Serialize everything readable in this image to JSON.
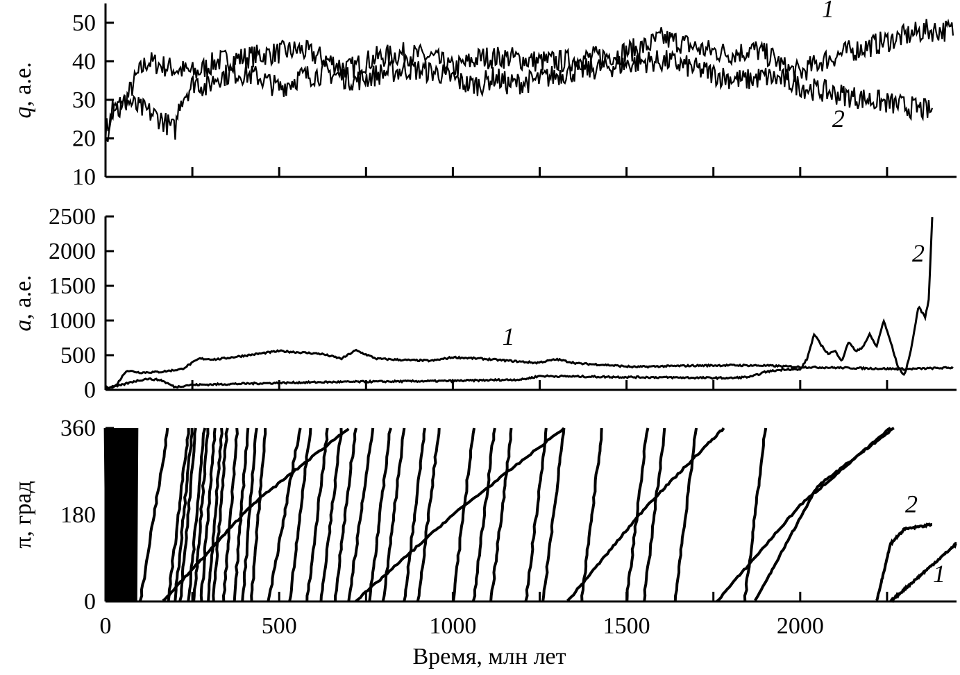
{
  "chart_data": [
    {
      "type": "line",
      "panel": "q",
      "ylabel_var": "q",
      "ylabel_unit": ", а.е.",
      "ylim": [
        10,
        55
      ],
      "yticks": [
        10,
        20,
        30,
        40,
        50
      ],
      "xlim": [
        0,
        2450
      ],
      "xticks": [
        0,
        250,
        500,
        750,
        1000,
        1250,
        1500,
        1750,
        2000,
        2250
      ],
      "xtick_labels_shown": false,
      "series": [
        {
          "name": "1",
          "x": [
            0,
            30,
            60,
            90,
            120,
            160,
            200,
            260,
            320,
            400,
            480,
            560,
            620,
            700,
            780,
            860,
            940,
            1000,
            1080,
            1160,
            1240,
            1320,
            1400,
            1480,
            1560,
            1600,
            1650,
            1720,
            1800,
            1870,
            1920,
            1960,
            2000,
            2060,
            2120,
            2200,
            2280,
            2360,
            2440
          ],
          "y": [
            22,
            28,
            30,
            36,
            40,
            39,
            38,
            37,
            40,
            41,
            42,
            43,
            41,
            38,
            41,
            42,
            41,
            38,
            41,
            41,
            40,
            40,
            41,
            42,
            44,
            46,
            45,
            43,
            42,
            43,
            41,
            38,
            37,
            40,
            42,
            44,
            46,
            48,
            48
          ],
          "band": 3
        },
        {
          "name": "2",
          "x": [
            0,
            20,
            40,
            60,
            90,
            120,
            160,
            200,
            215,
            260,
            290,
            320,
            380,
            440,
            500,
            560,
            640,
            720,
            800,
            880,
            960,
            1040,
            1080,
            1120,
            1160,
            1240,
            1320,
            1400,
            1480,
            1560,
            1620,
            1700,
            1780,
            1840,
            1900,
            1960,
            2020,
            2080,
            2140,
            2200,
            2260,
            2320,
            2380
          ],
          "y": [
            18,
            30,
            27,
            30,
            28,
            27,
            25,
            22,
            30,
            35,
            33,
            36,
            37,
            36,
            33,
            36,
            37,
            35,
            37,
            38,
            37,
            34,
            34,
            36,
            34,
            35,
            37,
            38,
            39,
            40,
            40,
            38,
            36,
            35,
            36,
            35,
            33,
            32,
            31,
            30,
            29,
            28,
            27
          ],
          "band": 3
        }
      ],
      "annotations": [
        {
          "text": "1",
          "x": 2080,
          "y": 51.5
        },
        {
          "text": "2",
          "x": 2110,
          "y": 23
        }
      ]
    },
    {
      "type": "line",
      "panel": "a",
      "ylabel_var": "a",
      "ylabel_unit": ", а.е.",
      "ylim": [
        0,
        2500
      ],
      "yticks": [
        0,
        500,
        1000,
        1500,
        2000,
        2500
      ],
      "xlim": [
        0,
        2450
      ],
      "xticks": [
        0,
        250,
        500,
        750,
        1000,
        1250,
        1500,
        1750,
        2000,
        2250
      ],
      "xtick_labels_shown": false,
      "series": [
        {
          "name": "1",
          "x": [
            0,
            30,
            60,
            100,
            160,
            220,
            270,
            320,
            380,
            440,
            500,
            560,
            620,
            680,
            720,
            780,
            860,
            940,
            1000,
            1080,
            1160,
            1240,
            1300,
            1360,
            1440,
            1520,
            1600,
            1700,
            1800,
            1900,
            2000,
            2100,
            2200,
            2300,
            2440
          ],
          "y": [
            30,
            60,
            280,
            250,
            260,
            300,
            450,
            440,
            480,
            520,
            560,
            540,
            520,
            450,
            570,
            450,
            430,
            420,
            470,
            450,
            420,
            390,
            440,
            380,
            360,
            330,
            340,
            350,
            355,
            350,
            330,
            320,
            310,
            300,
            320
          ]
        },
        {
          "name": "2",
          "x": [
            0,
            40,
            80,
            120,
            160,
            200,
            240,
            400,
            600,
            800,
            1000,
            1200,
            1250,
            1400,
            1600,
            1800,
            1860,
            1900,
            1960,
            2000,
            2020,
            2040,
            2060,
            2080,
            2100,
            2120,
            2140,
            2160,
            2180,
            2200,
            2220,
            2240,
            2260,
            2280,
            2300,
            2320,
            2340,
            2360,
            2370,
            2380
          ],
          "y": [
            20,
            60,
            120,
            160,
            140,
            40,
            70,
            90,
            110,
            120,
            130,
            150,
            200,
            190,
            180,
            170,
            190,
            260,
            300,
            290,
            450,
            800,
            650,
            520,
            560,
            420,
            700,
            550,
            620,
            800,
            620,
            1000,
            700,
            350,
            200,
            600,
            1200,
            1050,
            1300,
            2500
          ]
        }
      ],
      "annotations": [
        {
          "text": "1",
          "x": 1160,
          "y": 650
        },
        {
          "text": "2",
          "x": 2340,
          "y": 1850
        }
      ]
    },
    {
      "type": "line",
      "panel": "pi",
      "ylabel": "π, град",
      "ylim": [
        0,
        360
      ],
      "yticks": [
        0,
        180,
        360
      ],
      "xlim": [
        0,
        2450
      ],
      "xticks": [
        0,
        250,
        500,
        750,
        1000,
        1250,
        1500,
        1750,
        2000,
        2250
      ],
      "xtick_labels": [
        "0",
        "",
        "500",
        "",
        "1000",
        "",
        "1500",
        "",
        "2000",
        ""
      ],
      "xlabel": "Время, млн лет",
      "noise_region": [
        0,
        90
      ],
      "series": [
        {
          "name": "1",
          "segments": [
            {
              "x": [
                165,
                420,
                700
              ],
              "y": [
                0,
                200,
                360
              ]
            },
            {
              "x": [
                720,
                1000,
                1320
              ],
              "y": [
                0,
                180,
                360
              ]
            },
            {
              "x": [
                1330,
                1560,
                1780
              ],
              "y": [
                0,
                200,
                360
              ]
            },
            {
              "x": [
                1760,
                2000,
                2260
              ],
              "y": [
                0,
                200,
                360
              ]
            },
            {
              "x": [
                2260,
                2450
              ],
              "y": [
                0,
                120
              ]
            }
          ]
        },
        {
          "name": "2",
          "segments": [
            {
              "x": [
                1870,
                2050,
                2270
              ],
              "y": [
                0,
                240,
                360
              ]
            },
            {
              "x": [
                2220,
                2260,
                2300,
                2380
              ],
              "y": [
                0,
                120,
                150,
                160
              ]
            }
          ],
          "steep_lines_x0": [
            100,
            180,
            200,
            215,
            240,
            255,
            275,
            295,
            310,
            340,
            370,
            395,
            420,
            470,
            530,
            580,
            620,
            660,
            700,
            760,
            800,
            860,
            900,
            1000,
            1060,
            1110,
            1210,
            1260,
            1370,
            1500,
            1550,
            1640,
            1840
          ],
          "steep_lines_dx": [
            80,
            60,
            50,
            45,
            45,
            40,
            40,
            40,
            40,
            40,
            40,
            40,
            40,
            90,
            60,
            60,
            60,
            60,
            70,
            60,
            60,
            60,
            60,
            60,
            60,
            60,
            60,
            60,
            60,
            60,
            60,
            60,
            60
          ]
        }
      ],
      "annotations": [
        {
          "text": "2",
          "x": 2320,
          "y": 185
        },
        {
          "text": "1",
          "x": 2400,
          "y": 40
        }
      ]
    }
  ]
}
